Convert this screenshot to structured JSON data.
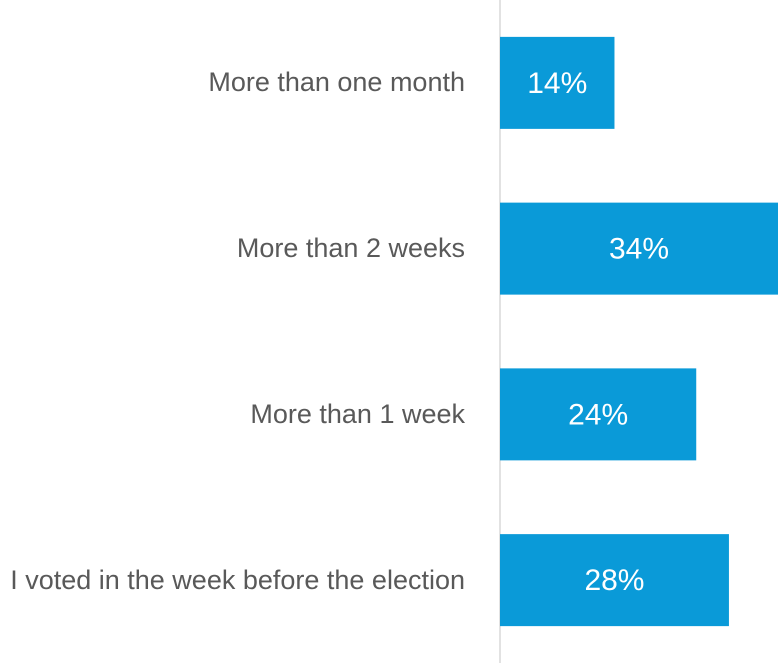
{
  "chart_data": {
    "type": "bar",
    "orientation": "horizontal",
    "categories": [
      "More than one month",
      "More than 2 weeks",
      "More than 1 week",
      "I voted in the week before the election"
    ],
    "values": [
      14,
      34,
      24,
      28
    ],
    "value_labels": [
      "14%",
      "34%",
      "24%",
      "28%"
    ],
    "color": "#0a9ad8"
  }
}
